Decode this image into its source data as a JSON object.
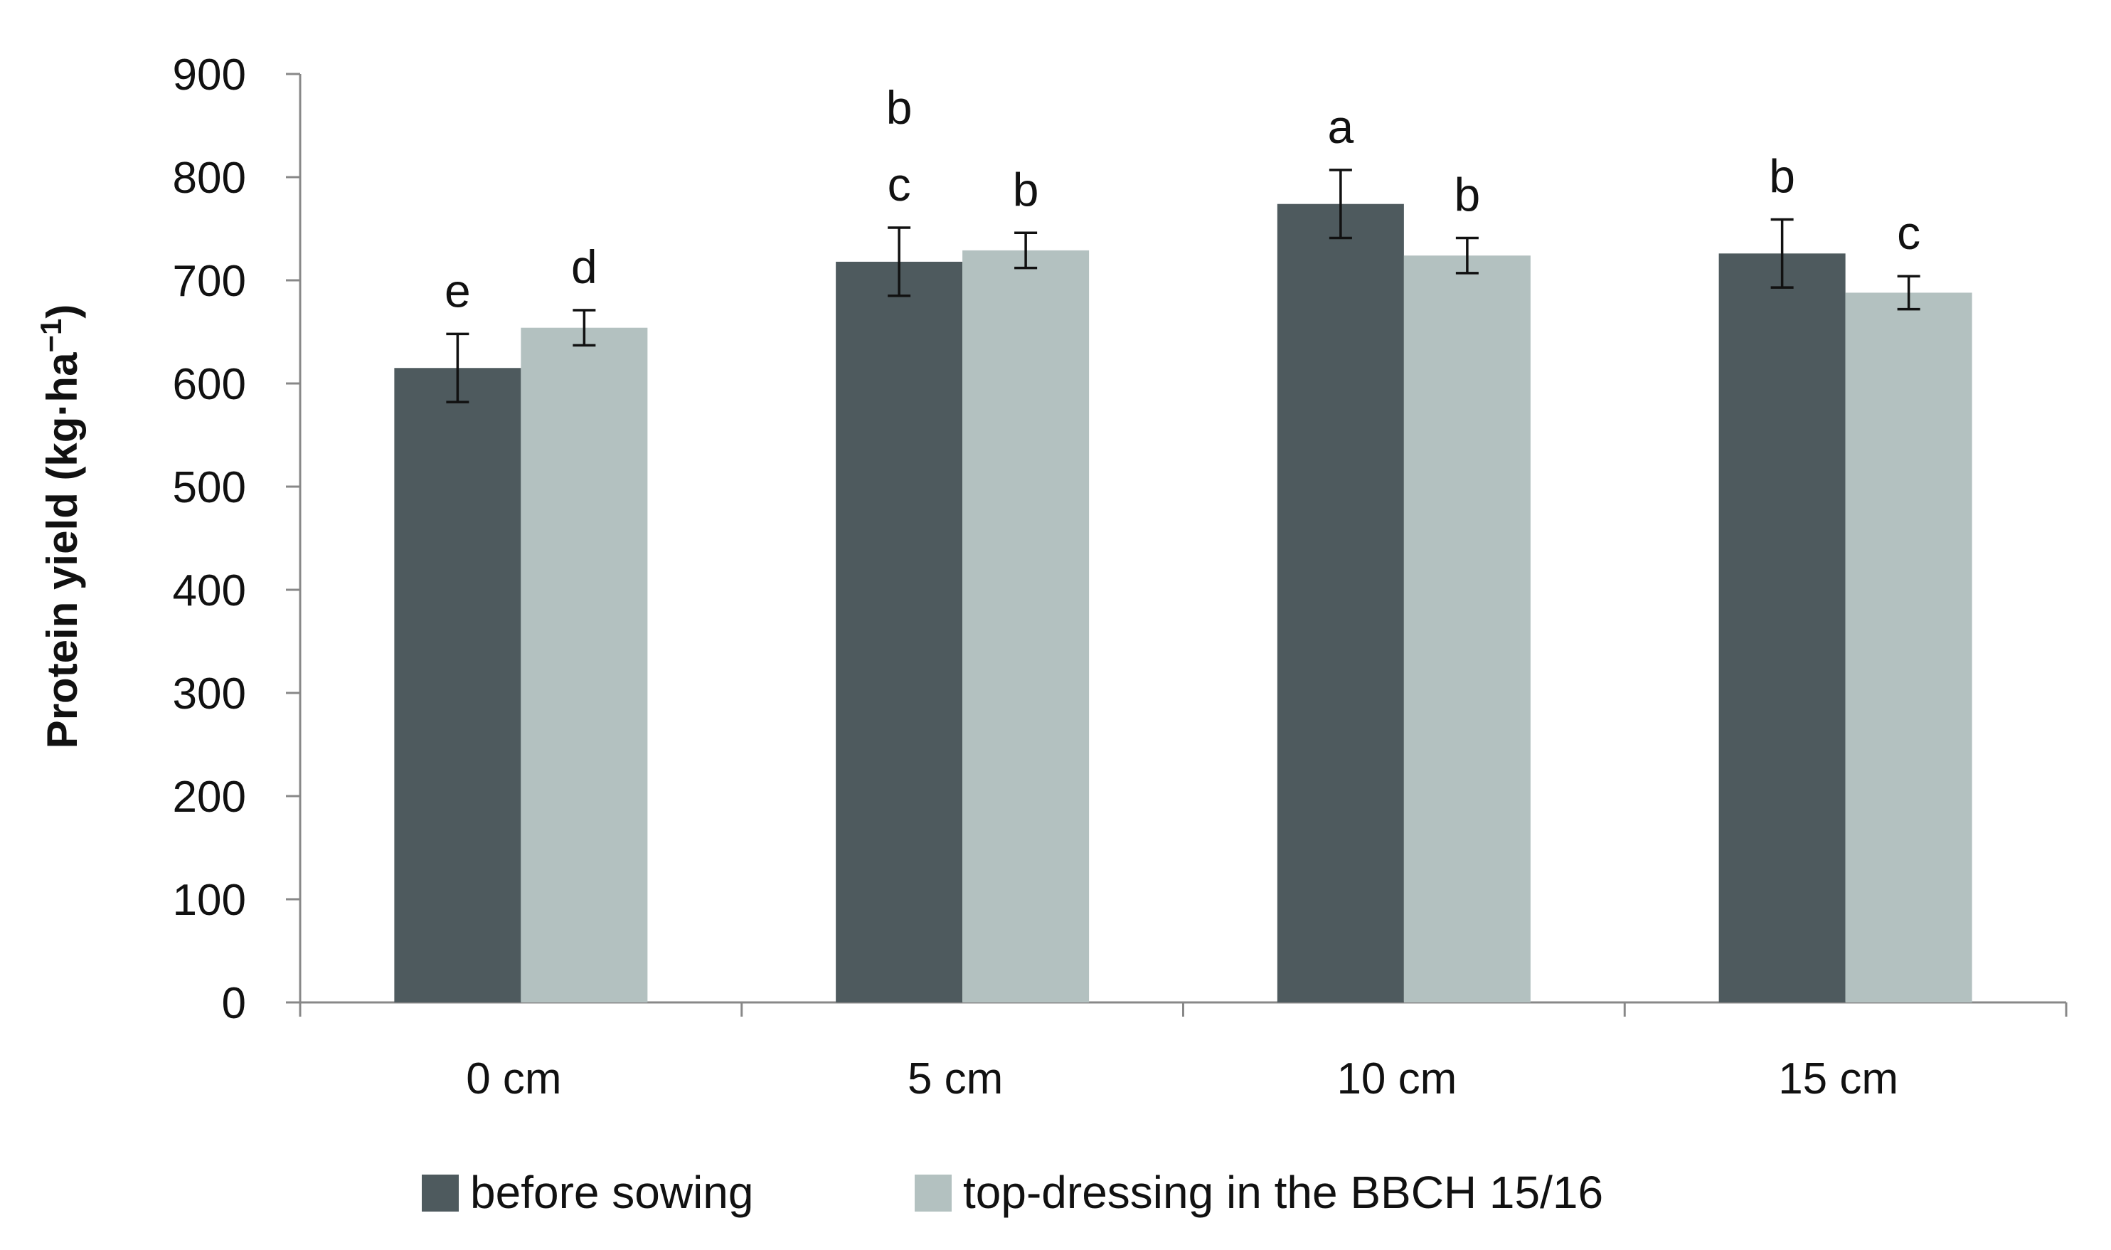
{
  "chart_data": {
    "type": "bar",
    "title": "",
    "xlabel": "",
    "ylabel": "Protein yield (kg·ha",
    "ylabel_unit_superscript": "−1",
    "ylabel_close": ")",
    "ylim": [
      0,
      900
    ],
    "yticks": [
      "0",
      "100",
      "200",
      "300",
      "400",
      "500",
      "600",
      "700",
      "800",
      "900"
    ],
    "categories": [
      "0 cm",
      "5 cm",
      "10 cm",
      "15 cm"
    ],
    "series": [
      {
        "name": "before sowing",
        "color": "#4e5a5e",
        "values": [
          615,
          718,
          774,
          726
        ],
        "errors": [
          33,
          33,
          33,
          33
        ],
        "letters": [
          "e",
          "c",
          "a",
          "b"
        ],
        "extra_letters": [
          "",
          "b",
          "",
          ""
        ]
      },
      {
        "name": "top-dressing in the BBCH 15/16",
        "color": "#b3c1c0",
        "values": [
          654,
          729,
          724,
          688
        ],
        "errors": [
          17,
          17,
          17,
          16
        ],
        "letters": [
          "d",
          "b",
          "b",
          "c"
        ],
        "extra_letters": [
          "",
          "",
          "",
          ""
        ]
      }
    ],
    "legend_position": "bottom",
    "grid": false
  }
}
